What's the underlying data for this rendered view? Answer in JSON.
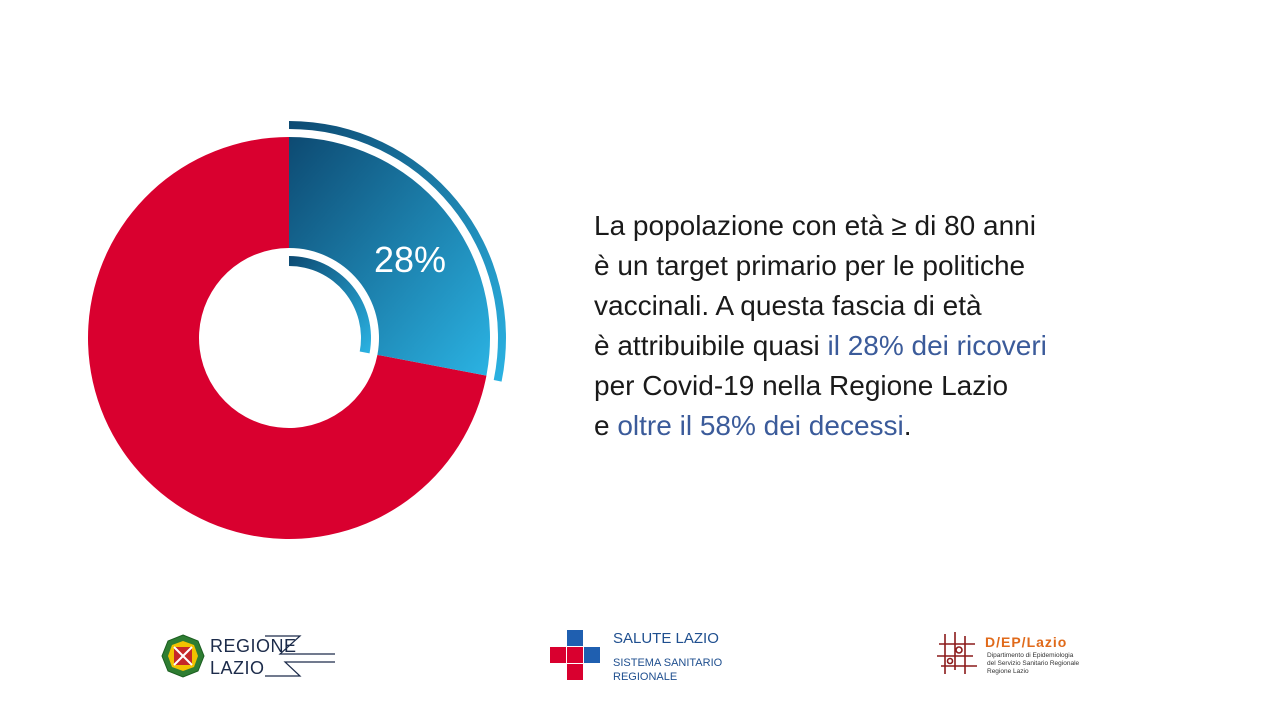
{
  "chart_data": {
    "type": "pie",
    "variant": "donut",
    "slices": [
      {
        "label": "28%",
        "value": 28,
        "color": "#1a8fc4",
        "highlighted": true
      },
      {
        "label": "",
        "value": 72,
        "color": "#d9002f",
        "highlighted": false
      }
    ]
  },
  "text": {
    "line1": "La popolazione con età ≥ di 80 anni",
    "line2": "è un target primario per le politiche",
    "line3": "vaccinali. A questa fascia di età",
    "line4_a": "è attribuibile quasi ",
    "line4_hl": "il 28% dei ricoveri",
    "line5": "per Covid-19 nella Regione Lazio",
    "line6_a": "e ",
    "line6_hl": "oltre il 58% dei decessi",
    "line6_end": "."
  },
  "logos": {
    "regione_line1": "REGIONE",
    "regione_line2": "LAZIO",
    "salute_title": "SALUTE LAZIO",
    "salute_sub1": "SISTEMA SANITARIO",
    "salute_sub2": "REGIONALE",
    "dep_title": "D/EP/Lazio",
    "dep_sub1": "Dipartimento di Epidemiologia",
    "dep_sub2": "del Servizio Sanitario Regionale",
    "dep_sub3": "Regione Lazio"
  },
  "colors": {
    "red": "#d9002f",
    "blue_dark": "#0d4a72",
    "blue_light": "#2bb3e3",
    "highlight_text": "#3b5b9a",
    "cross_blue": "#1f5fb0",
    "cross_red": "#d9002f",
    "dep_orange": "#e06a1a"
  }
}
